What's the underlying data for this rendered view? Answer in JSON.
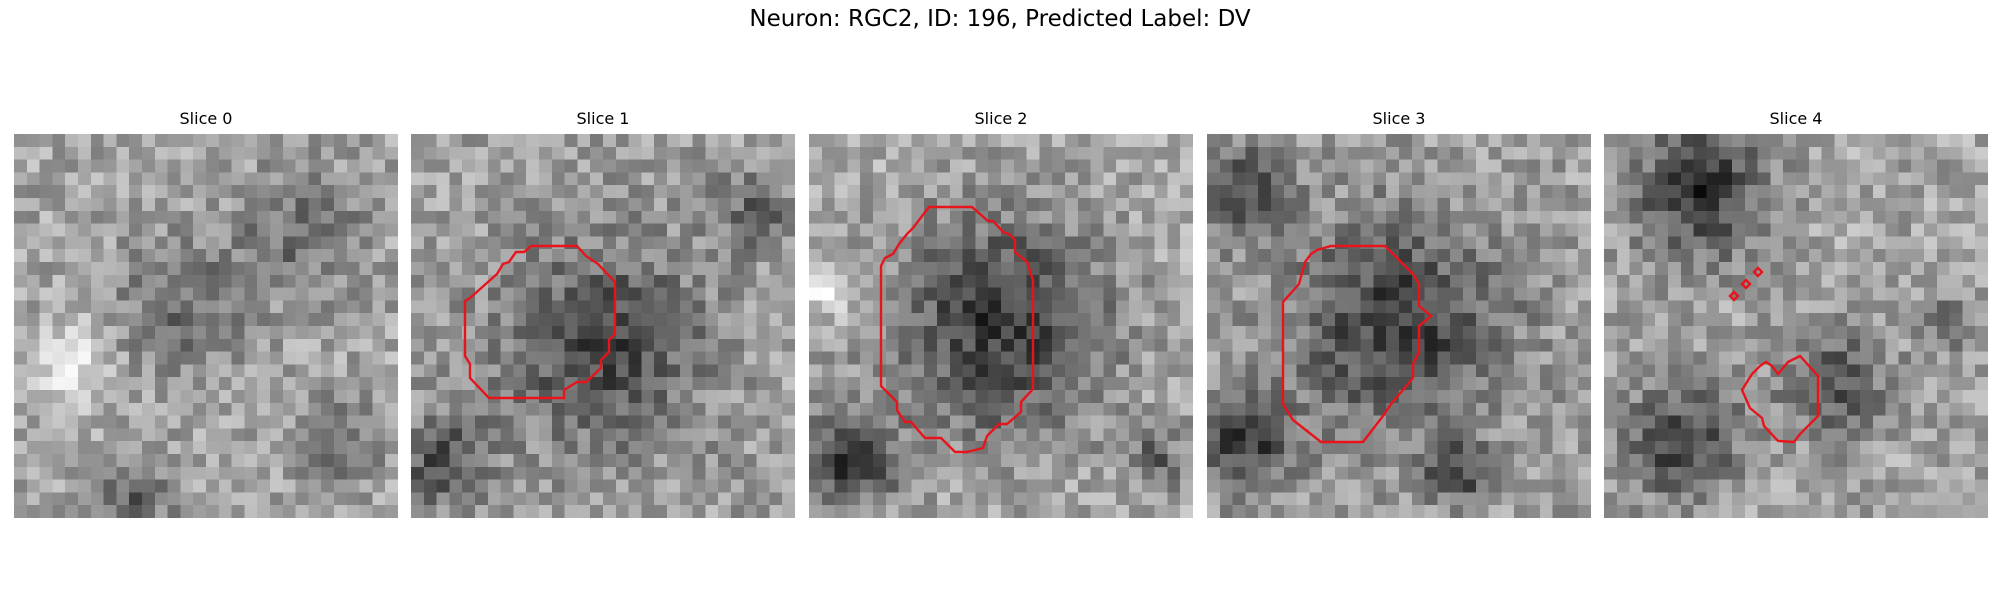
{
  "title": "Neuron: RGC2, ID: 196, Predicted Label: DV",
  "panels": [
    {
      "label": "Slice 0",
      "has_contour": false
    },
    {
      "label": "Slice 1",
      "has_contour": true
    },
    {
      "label": "Slice 2",
      "has_contour": true
    },
    {
      "label": "Slice 3",
      "has_contour": true
    },
    {
      "label": "Slice 4",
      "has_contour": true
    }
  ],
  "colors": {
    "contour": "#e8141c",
    "background": "#ffffff"
  },
  "image_style": "grayscale pixelated microscopy crop"
}
